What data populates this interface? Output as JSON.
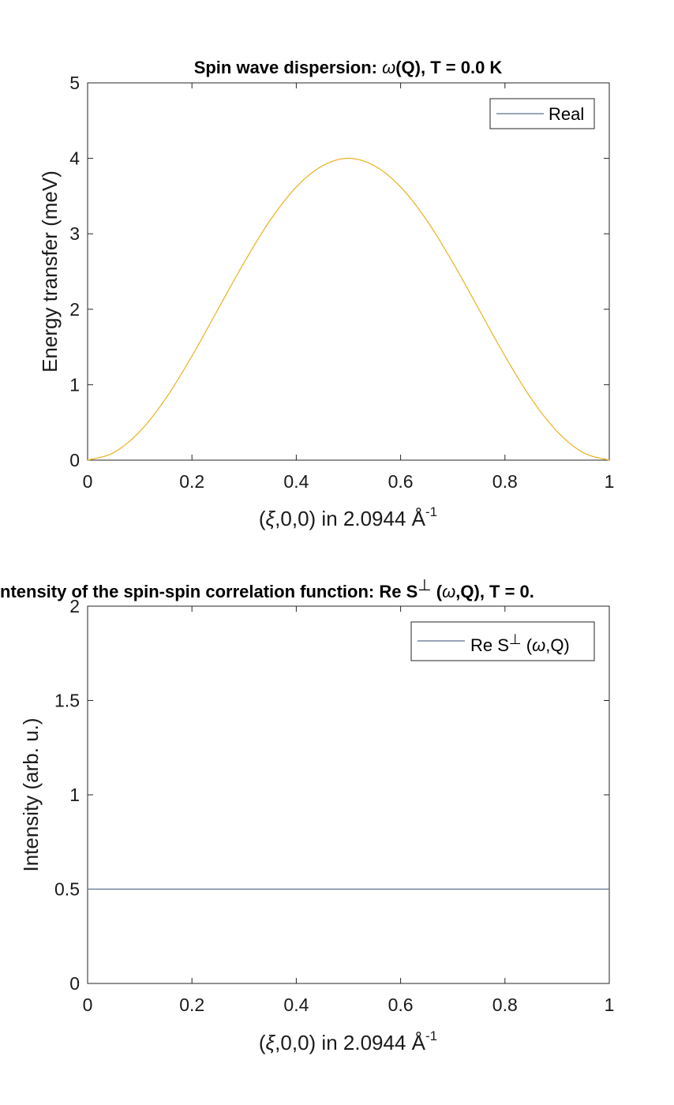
{
  "chart_data": [
    {
      "type": "line",
      "title_main": "Spin wave dispersion: ",
      "title_omega": "ω",
      "title_rest": "(Q), T =   0.0 K",
      "xlabel": {
        "pre": "(",
        "xi": "ξ",
        "post": ",0,0) in 2.0944 Å",
        "sup": "-1"
      },
      "ylabel": "Energy transfer (meV)",
      "xlim": [
        0,
        1
      ],
      "ylim": [
        0,
        5
      ],
      "xticks": [
        "0",
        "0.2",
        "0.4",
        "0.6",
        "0.8",
        "1"
      ],
      "yticks": [
        "0",
        "1",
        "2",
        "3",
        "4",
        "5"
      ],
      "legend": {
        "position": "top-right",
        "entries": [
          {
            "label": "Real",
            "color": "#5a6f8c"
          }
        ]
      },
      "series": [
        {
          "name": "Real",
          "color": "#edb120",
          "x": [
            0,
            0.05,
            0.1,
            0.15,
            0.2,
            0.25,
            0.3,
            0.35,
            0.4,
            0.45,
            0.5,
            0.55,
            0.6,
            0.65,
            0.7,
            0.75,
            0.8,
            0.85,
            0.9,
            0.95,
            1
          ],
          "y": [
            0,
            0.1,
            0.38,
            0.82,
            1.38,
            2.0,
            2.62,
            3.18,
            3.62,
            3.9,
            4.0,
            3.9,
            3.62,
            3.18,
            2.62,
            2.0,
            1.38,
            0.82,
            0.38,
            0.1,
            0
          ]
        }
      ]
    },
    {
      "type": "line",
      "title_pre": "ntensity of the spin-spin correlation function: Re S",
      "title_perp": "⊥",
      "title_omega": "ω",
      "title_post": ",Q), T =   0.",
      "xlabel": {
        "pre": "(",
        "xi": "ξ",
        "post": ",0,0) in 2.0944 Å",
        "sup": "-1"
      },
      "ylabel": "Intensity (arb. u.)",
      "xlim": [
        0,
        1
      ],
      "ylim": [
        0,
        2
      ],
      "xticks": [
        "0",
        "0.2",
        "0.4",
        "0.6",
        "0.8",
        "1"
      ],
      "yticks": [
        "0",
        "0.5",
        "1",
        "1.5",
        "2"
      ],
      "legend": {
        "position": "top-right",
        "entries": [
          {
            "label_pre": "Re S",
            "label_perp": "⊥",
            "label_omega": "ω",
            "label_post": ",Q)",
            "color": "#5a6f8c"
          }
        ]
      },
      "series": [
        {
          "color": "#5a6f8c",
          "x": [
            0,
            1
          ],
          "y": [
            0.5,
            0.5
          ]
        }
      ]
    }
  ]
}
